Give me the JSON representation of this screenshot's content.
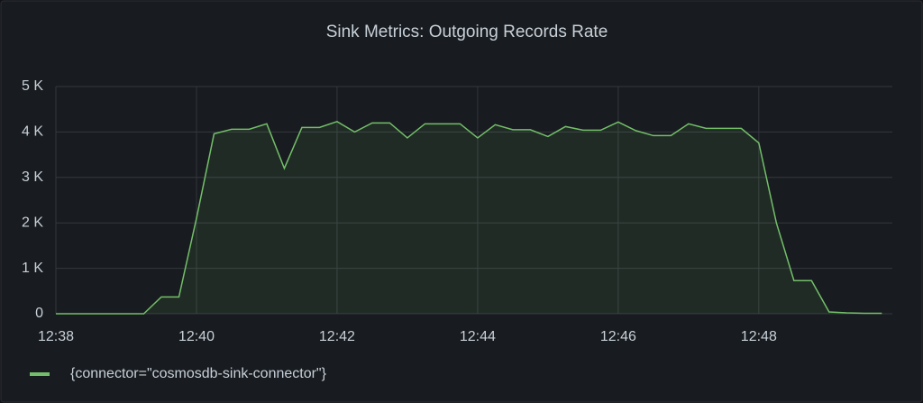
{
  "chart_data": {
    "type": "line",
    "title": "Sink Metrics: Outgoing Records Rate",
    "x": [
      758,
      758.25,
      758.5,
      758.75,
      759,
      759.25,
      759.5,
      759.75,
      760,
      760.25,
      760.5,
      760.75,
      761,
      761.25,
      761.5,
      761.75,
      762,
      762.25,
      762.5,
      762.75,
      763,
      763.25,
      763.5,
      763.75,
      764,
      764.25,
      764.5,
      764.75,
      765,
      765.25,
      765.5,
      765.75,
      766,
      766.25,
      766.5,
      766.75,
      767,
      767.25,
      767.5,
      767.75,
      768,
      768.25,
      768.5,
      768.75,
      769,
      769.25,
      769.5,
      769.75
    ],
    "series": [
      {
        "name": "{connector=\"cosmosdb-sink-connector\"}",
        "color": "#73bf69",
        "values": [
          0,
          0,
          0,
          0,
          0,
          0,
          370,
          370,
          2100,
          3960,
          4060,
          4060,
          4180,
          3200,
          4100,
          4100,
          4230,
          4000,
          4200,
          4200,
          3870,
          4180,
          4180,
          4180,
          3870,
          4160,
          4050,
          4050,
          3900,
          4120,
          4040,
          4040,
          4220,
          4030,
          3920,
          3920,
          4180,
          4080,
          4080,
          4080,
          3760,
          2000,
          730,
          730,
          40,
          20,
          10,
          10
        ]
      }
    ],
    "xlim": [
      758,
      769.9
    ],
    "xticks": [
      {
        "value": 758,
        "label": "12:38"
      },
      {
        "value": 760,
        "label": "12:40"
      },
      {
        "value": 762,
        "label": "12:42"
      },
      {
        "value": 764,
        "label": "12:44"
      },
      {
        "value": 766,
        "label": "12:46"
      },
      {
        "value": 768,
        "label": "12:48"
      }
    ],
    "ylim": [
      0,
      5000
    ],
    "yticks": [
      0,
      {
        "value": 1000,
        "label": "1 K"
      },
      {
        "value": 2000,
        "label": "2 K"
      },
      {
        "value": 3000,
        "label": "3 K"
      },
      {
        "value": 4000,
        "label": "4 K"
      },
      {
        "value": 5000,
        "label": "5 K"
      }
    ],
    "grid": true,
    "legend": "bottom-left"
  }
}
